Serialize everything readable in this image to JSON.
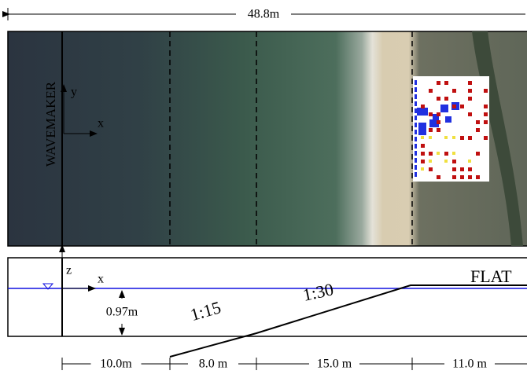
{
  "plan_view": {
    "total_length": "48.8m",
    "wavemaker": "WAVEMAKER",
    "axis_y": "y",
    "axis_x": "x"
  },
  "profile_view": {
    "axis_z": "z",
    "axis_x": "x",
    "depth": "0.97m",
    "slope_1": "1:15",
    "slope_2": "1:30",
    "flat": "FLAT"
  },
  "dimensions": [
    "10.0m",
    "8.0 m",
    "15.0 m",
    "11.0 m"
  ]
}
